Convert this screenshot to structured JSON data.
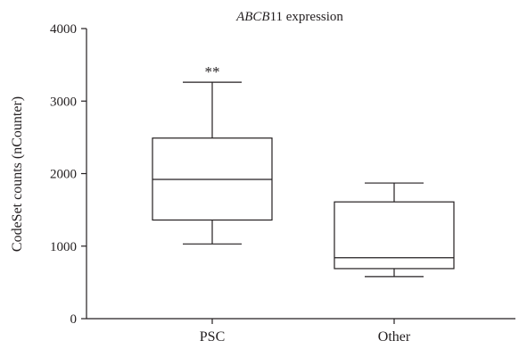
{
  "chart_data": {
    "type": "box",
    "title_italic": "ABCB",
    "title_rest": "11 expression",
    "ylabel": "CodeSet counts (nCounter)",
    "xlabel": "",
    "ylim": [
      0,
      4000
    ],
    "yticks": [
      0,
      1000,
      2000,
      3000,
      4000
    ],
    "categories": [
      "PSC",
      "Other"
    ],
    "boxes": [
      {
        "label": "PSC",
        "min": 1030,
        "q1": 1360,
        "median": 1920,
        "q3": 2490,
        "max": 3260,
        "annotation": "**"
      },
      {
        "label": "Other",
        "min": 580,
        "q1": 690,
        "median": 840,
        "q3": 1610,
        "max": 1870,
        "annotation": ""
      }
    ],
    "grid": false,
    "legend": "none"
  }
}
